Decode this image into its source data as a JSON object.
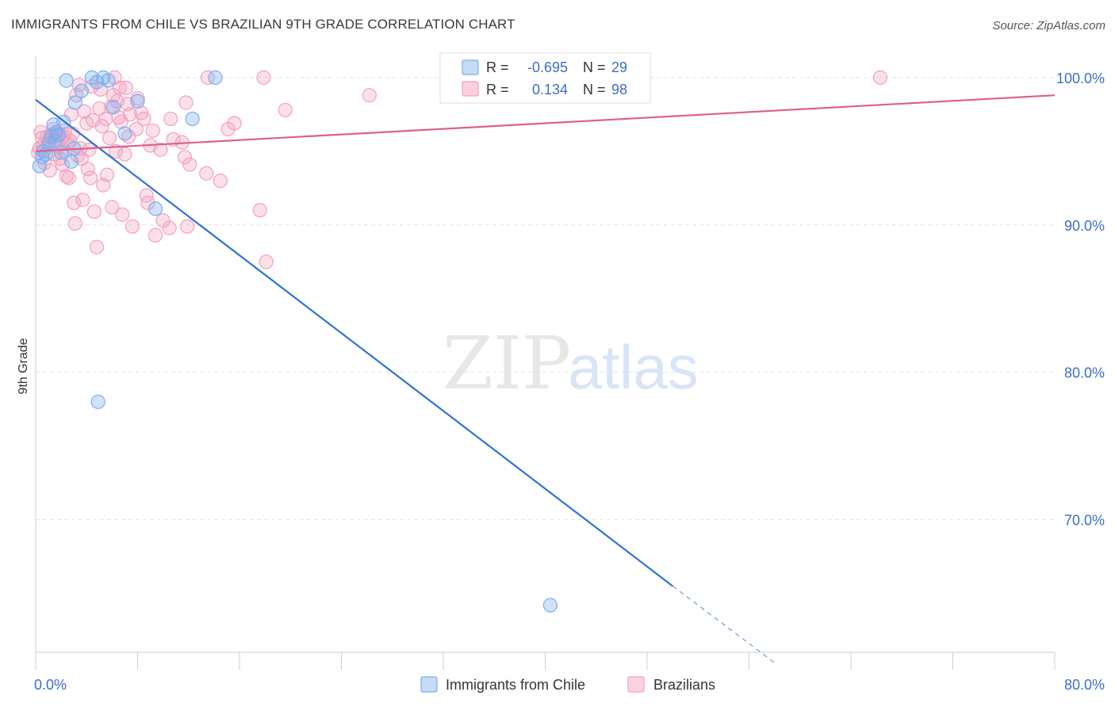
{
  "title": "IMMIGRANTS FROM CHILE VS BRAZILIAN 9TH GRADE CORRELATION CHART",
  "source": "Source: ZipAtlas.com",
  "watermark": {
    "zip": "ZIP",
    "atlas": "atlas"
  },
  "colors": {
    "chile": "#7aaef0",
    "chile_line": "#2d73d4",
    "brazil": "#f4a0bd",
    "brazil_line": "#e0608a",
    "value_text": "#3a6fc8",
    "grid": "#e2e2e2"
  },
  "legend": {
    "rows": [
      {
        "r_label": "R =",
        "r_value": "-0.695",
        "n_label": "N =",
        "n_value": "29"
      },
      {
        "r_label": "R =",
        "r_value": "0.134",
        "n_label": "N =",
        "n_value": "98"
      }
    ]
  },
  "bottom_legend": [
    "Immigrants from Chile",
    "Brazilians"
  ],
  "chart_data": {
    "type": "scatter",
    "title": "IMMIGRANTS FROM CHILE VS BRAZILIAN 9TH GRADE CORRELATION CHART",
    "xlabel": "",
    "ylabel": "9th Grade",
    "xlim": [
      0,
      80
    ],
    "ylim": [
      61,
      101.5
    ],
    "x_tick_labels": [
      "0.0%",
      "80.0%"
    ],
    "y_ticks": [
      70,
      80,
      90,
      100
    ],
    "y_tick_labels": [
      "70.0%",
      "80.0%",
      "90.0%",
      "100.0%"
    ],
    "series": [
      {
        "name": "Immigrants from Chile",
        "r": -0.695,
        "n": 29,
        "trend": {
          "x0": 0,
          "y0": 98.5,
          "x1": 50,
          "y1": 65.5,
          "dash_x1": 58,
          "dash_y1": 60.3
        },
        "points": [
          [
            0.3,
            94.0
          ],
          [
            0.5,
            94.6
          ],
          [
            0.6,
            95.0
          ],
          [
            1.0,
            95.5
          ],
          [
            1.4,
            96.8
          ],
          [
            1.6,
            96.3
          ],
          [
            1.8,
            96.1
          ],
          [
            2.0,
            94.9
          ],
          [
            2.4,
            99.8
          ],
          [
            2.8,
            94.3
          ],
          [
            3.1,
            98.3
          ],
          [
            3.6,
            99.1
          ],
          [
            4.4,
            100.0
          ],
          [
            4.8,
            99.7
          ],
          [
            5.3,
            100.0
          ],
          [
            5.7,
            99.8
          ],
          [
            6.1,
            98.0
          ],
          [
            7.0,
            96.2
          ],
          [
            8.0,
            98.4
          ],
          [
            9.4,
            91.1
          ],
          [
            12.3,
            97.2
          ],
          [
            14.1,
            100.0
          ],
          [
            4.9,
            78.0
          ],
          [
            40.4,
            64.2
          ],
          [
            1.2,
            96.0
          ],
          [
            0.8,
            94.8
          ],
          [
            2.2,
            97.0
          ],
          [
            3.0,
            95.2
          ],
          [
            1.5,
            95.7
          ]
        ]
      },
      {
        "name": "Brazilians",
        "r": 0.134,
        "n": 98,
        "trend": {
          "x0": 0,
          "y0": 95.0,
          "x1": 80,
          "y1": 98.8
        },
        "points": [
          [
            0.3,
            95.2
          ],
          [
            0.4,
            96.3
          ],
          [
            0.5,
            95.9
          ],
          [
            0.7,
            94.2
          ],
          [
            0.9,
            96.0
          ],
          [
            1.0,
            95.7
          ],
          [
            1.2,
            95.5
          ],
          [
            1.3,
            96.1
          ],
          [
            1.5,
            94.8
          ],
          [
            1.7,
            95.3
          ],
          [
            1.8,
            96.2
          ],
          [
            2.0,
            95.8
          ],
          [
            2.1,
            94.1
          ],
          [
            2.2,
            96.0
          ],
          [
            2.5,
            95.5
          ],
          [
            2.6,
            93.2
          ],
          [
            2.8,
            97.5
          ],
          [
            3.0,
            91.5
          ],
          [
            3.1,
            90.1
          ],
          [
            3.2,
            98.8
          ],
          [
            3.4,
            99.5
          ],
          [
            3.5,
            95.2
          ],
          [
            3.6,
            94.5
          ],
          [
            3.7,
            91.7
          ],
          [
            3.8,
            97.7
          ],
          [
            4.0,
            96.9
          ],
          [
            4.1,
            93.8
          ],
          [
            4.2,
            95.1
          ],
          [
            4.4,
            99.4
          ],
          [
            4.5,
            97.1
          ],
          [
            4.6,
            90.9
          ],
          [
            4.8,
            88.5
          ],
          [
            5.0,
            97.9
          ],
          [
            5.1,
            99.2
          ],
          [
            5.3,
            92.7
          ],
          [
            5.5,
            97.2
          ],
          [
            5.6,
            93.4
          ],
          [
            5.8,
            95.9
          ],
          [
            6.0,
            91.2
          ],
          [
            6.1,
            98.8
          ],
          [
            6.2,
            100.0
          ],
          [
            6.4,
            98.4
          ],
          [
            6.5,
            97.3
          ],
          [
            6.6,
            99.3
          ],
          [
            6.8,
            90.7
          ],
          [
            7.0,
            94.8
          ],
          [
            7.1,
            99.3
          ],
          [
            7.2,
            98.2
          ],
          [
            7.4,
            97.5
          ],
          [
            7.6,
            89.9
          ],
          [
            7.9,
            96.5
          ],
          [
            8.0,
            98.6
          ],
          [
            8.3,
            97.6
          ],
          [
            8.7,
            92.0
          ],
          [
            8.8,
            91.5
          ],
          [
            9.0,
            95.4
          ],
          [
            9.4,
            89.3
          ],
          [
            9.8,
            95.1
          ],
          [
            10.0,
            90.3
          ],
          [
            10.5,
            89.8
          ],
          [
            10.6,
            97.2
          ],
          [
            10.8,
            95.8
          ],
          [
            11.5,
            95.6
          ],
          [
            11.7,
            94.6
          ],
          [
            11.8,
            98.3
          ],
          [
            11.9,
            89.9
          ],
          [
            12.1,
            94.1
          ],
          [
            13.4,
            93.5
          ],
          [
            13.5,
            100.0
          ],
          [
            14.5,
            93.0
          ],
          [
            15.1,
            96.5
          ],
          [
            15.6,
            96.9
          ],
          [
            17.6,
            91.0
          ],
          [
            17.9,
            100.0
          ],
          [
            18.1,
            87.5
          ],
          [
            19.6,
            97.8
          ],
          [
            26.2,
            98.8
          ],
          [
            66.3,
            100.0
          ],
          [
            1.1,
            93.7
          ],
          [
            1.9,
            94.5
          ],
          [
            2.3,
            96.4
          ],
          [
            2.4,
            93.3
          ],
          [
            2.7,
            95.7
          ],
          [
            2.9,
            96.2
          ],
          [
            3.3,
            94.7
          ],
          [
            4.3,
            93.2
          ],
          [
            5.2,
            96.7
          ],
          [
            5.9,
            98.0
          ],
          [
            6.3,
            95.0
          ],
          [
            6.7,
            97.0
          ],
          [
            7.3,
            96.0
          ],
          [
            8.5,
            97.2
          ],
          [
            9.2,
            96.4
          ],
          [
            0.2,
            94.9
          ],
          [
            0.6,
            95.4
          ],
          [
            1.4,
            96.5
          ],
          [
            1.6,
            96.2
          ],
          [
            2.3,
            95.0
          ]
        ]
      }
    ]
  }
}
